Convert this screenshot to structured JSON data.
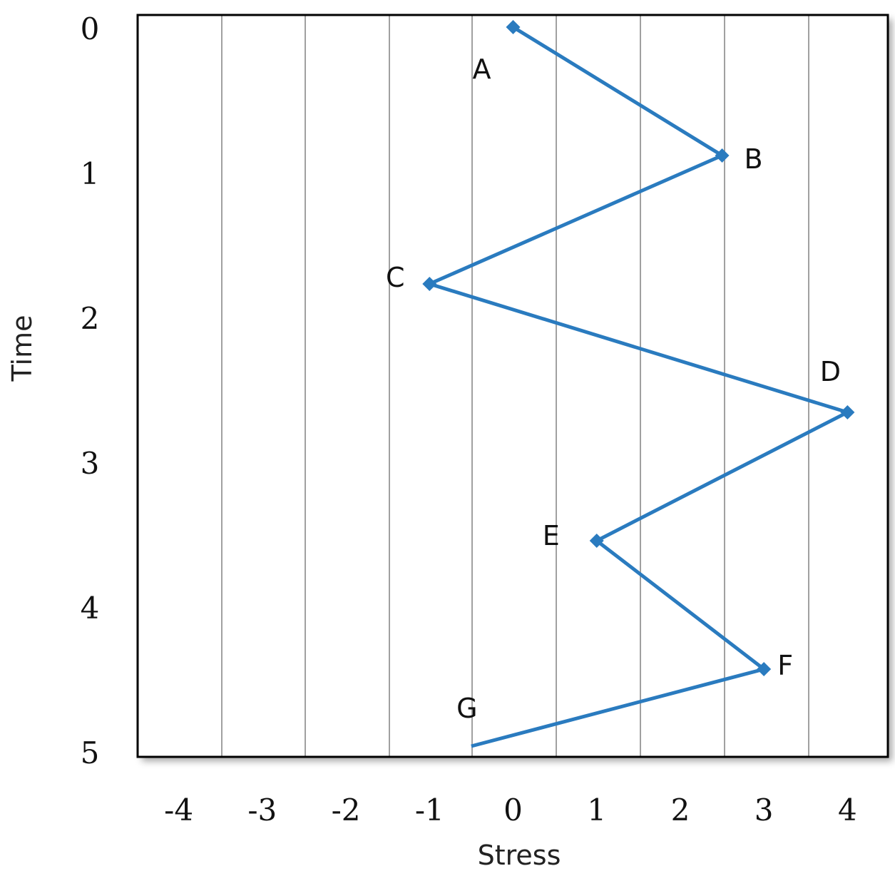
{
  "chart_data": {
    "type": "line",
    "title": "",
    "xlabel": "Stress",
    "ylabel": "Time",
    "x_ticks": [
      "-4",
      "-3",
      "-2",
      "-1",
      "0",
      "1",
      "2",
      "3",
      "4"
    ],
    "y_ticks": [
      "0",
      "1",
      "2",
      "3",
      "4",
      "5"
    ],
    "xlim": [
      -4.5,
      4.5
    ],
    "ylim": [
      0,
      5
    ],
    "y_inverted": true,
    "grid": "vertical",
    "series": [
      {
        "color": "#2a7bbf",
        "points": [
          {
            "label": "A",
            "x": 0,
            "y": 0
          },
          {
            "label": "B",
            "x": 2.5,
            "y": 1
          },
          {
            "label": "C",
            "x": -1,
            "y": 2
          },
          {
            "label": "D",
            "x": 4,
            "y": 3
          },
          {
            "label": "E",
            "x": 1,
            "y": 4
          },
          {
            "label": "F",
            "x": 3,
            "y": 5
          },
          {
            "label": "G",
            "x": -0.5,
            "y": 5.6
          }
        ]
      }
    ]
  }
}
